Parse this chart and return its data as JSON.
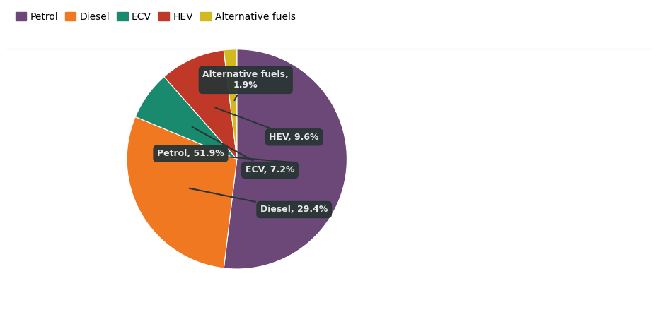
{
  "labels": [
    "Petrol",
    "Diesel",
    "ECV",
    "HEV",
    "Alternative fuels"
  ],
  "values": [
    51.9,
    29.4,
    7.2,
    9.6,
    1.9
  ],
  "colors": [
    "#6b4878",
    "#f07820",
    "#1a8a6e",
    "#c03828",
    "#d4b820"
  ],
  "legend_colors": [
    "#6b4878",
    "#f07820",
    "#1a8a6e",
    "#c03828",
    "#d4b820"
  ],
  "background_color": "#ffffff",
  "annotation_bg": "#2a3535",
  "annotation_text_color": "#e8e8e8",
  "figsize": [
    9.3,
    4.42
  ],
  "dpi": 100,
  "annot_texts": [
    "Petrol, 51.9%",
    "Diesel, 29.4%",
    "ECV, 7.2%",
    "HEV, 9.6%",
    "Alternative fuels,\n1.9%"
  ],
  "annot_positions_x": [
    -0.42,
    0.52,
    0.3,
    0.52,
    0.08
  ],
  "annot_positions_y": [
    0.05,
    -0.46,
    -0.1,
    0.2,
    0.72
  ],
  "connect_r": 0.52
}
